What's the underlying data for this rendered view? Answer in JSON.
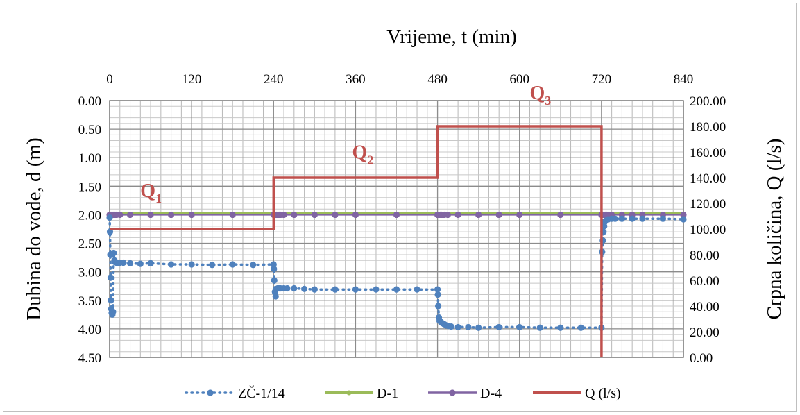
{
  "chart_data": {
    "type": "line",
    "title": "",
    "x_axis": {
      "label": "Vrijeme, t (min)",
      "position": "top",
      "range": [
        0,
        840
      ],
      "ticks": [
        0,
        120,
        240,
        360,
        480,
        600,
        720,
        840
      ],
      "tick_labels": [
        "0",
        "120",
        "240",
        "360",
        "480",
        "600",
        "720",
        "840"
      ],
      "minor_step": 15
    },
    "y_left": {
      "label": "Dubina do vode, d (m)",
      "reversed": true,
      "range": [
        0,
        4.5
      ],
      "ticks": [
        0,
        0.5,
        1.0,
        1.5,
        2.0,
        2.5,
        3.0,
        3.5,
        4.0,
        4.5
      ],
      "tick_labels": [
        "0.00",
        "0.50",
        "1.00",
        "1.50",
        "2.00",
        "2.50",
        "3.00",
        "3.50",
        "4.00",
        "4.50"
      ],
      "minor_step": 0.1
    },
    "y_right": {
      "label": "Crpna količina, Q (l/s)",
      "range": [
        0,
        200
      ],
      "ticks": [
        0,
        20,
        40,
        60,
        80,
        100,
        120,
        140,
        160,
        180,
        200
      ],
      "tick_labels": [
        "0.00",
        "20.00",
        "40.00",
        "60.00",
        "80.00",
        "100.00",
        "120.00",
        "140.00",
        "160.00",
        "180.00",
        "200.00"
      ]
    },
    "grid": true,
    "legend_position": "bottom",
    "series": [
      {
        "name": "ZČ-1/14",
        "axis": "left",
        "color": "#4f81bd",
        "style": "dotted-markers",
        "points": [
          [
            0,
            2.05
          ],
          [
            0.5,
            2.3
          ],
          [
            1,
            2.7
          ],
          [
            1.5,
            3.1
          ],
          [
            2,
            3.5
          ],
          [
            2.5,
            3.65
          ],
          [
            3,
            3.72
          ],
          [
            4,
            3.75
          ],
          [
            5,
            3.7
          ],
          [
            6,
            2.67
          ],
          [
            7,
            2.8
          ],
          [
            8,
            2.83
          ],
          [
            10,
            2.84
          ],
          [
            12,
            2.84
          ],
          [
            15,
            2.84
          ],
          [
            20,
            2.84
          ],
          [
            30,
            2.85
          ],
          [
            45,
            2.86
          ],
          [
            60,
            2.85
          ],
          [
            90,
            2.87
          ],
          [
            120,
            2.87
          ],
          [
            150,
            2.88
          ],
          [
            180,
            2.87
          ],
          [
            210,
            2.88
          ],
          [
            240,
            2.87
          ],
          [
            240.5,
            2.95
          ],
          [
            241,
            3.15
          ],
          [
            242,
            3.35
          ],
          [
            243,
            3.43
          ],
          [
            244,
            3.3
          ],
          [
            246,
            3.29
          ],
          [
            248,
            3.29
          ],
          [
            250,
            3.29
          ],
          [
            255,
            3.29
          ],
          [
            260,
            3.29
          ],
          [
            270,
            3.29
          ],
          [
            285,
            3.3
          ],
          [
            300,
            3.31
          ],
          [
            330,
            3.31
          ],
          [
            360,
            3.31
          ],
          [
            390,
            3.31
          ],
          [
            420,
            3.31
          ],
          [
            450,
            3.31
          ],
          [
            480,
            3.31
          ],
          [
            480.5,
            3.4
          ],
          [
            481,
            3.6
          ],
          [
            482,
            3.8
          ],
          [
            483,
            3.86
          ],
          [
            485,
            3.88
          ],
          [
            487,
            3.9
          ],
          [
            490,
            3.92
          ],
          [
            493,
            3.94
          ],
          [
            496,
            3.95
          ],
          [
            500,
            3.96
          ],
          [
            510,
            3.97
          ],
          [
            525,
            3.97
          ],
          [
            540,
            3.98
          ],
          [
            570,
            3.97
          ],
          [
            600,
            3.97
          ],
          [
            630,
            3.98
          ],
          [
            660,
            3.98
          ],
          [
            690,
            3.98
          ],
          [
            720,
            3.98
          ],
          [
            721,
            2.65
          ],
          [
            722,
            2.45
          ],
          [
            723,
            2.3
          ],
          [
            724,
            2.2
          ],
          [
            725,
            2.12
          ],
          [
            727,
            2.1
          ],
          [
            730,
            2.08
          ],
          [
            735,
            2.07
          ],
          [
            740,
            2.07
          ],
          [
            750,
            2.07
          ],
          [
            765,
            2.07
          ],
          [
            780,
            2.07
          ],
          [
            810,
            2.07
          ],
          [
            840,
            2.08
          ]
        ]
      },
      {
        "name": "D-1",
        "axis": "left",
        "color": "#9bbb59",
        "style": "line",
        "points": [
          [
            0,
            1.98
          ],
          [
            840,
            1.98
          ]
        ]
      },
      {
        "name": "D-4",
        "axis": "left",
        "color": "#8064a2",
        "style": "line-markers",
        "points": [
          [
            0,
            2.0
          ],
          [
            2,
            2.0
          ],
          [
            4,
            2.0
          ],
          [
            6,
            2.0
          ],
          [
            8,
            2.0
          ],
          [
            10,
            2.0
          ],
          [
            15,
            2.0
          ],
          [
            30,
            2.0
          ],
          [
            60,
            2.0
          ],
          [
            90,
            2.0
          ],
          [
            120,
            2.0
          ],
          [
            180,
            2.0
          ],
          [
            240,
            2.0
          ],
          [
            242,
            2.0
          ],
          [
            244,
            2.0
          ],
          [
            246,
            2.0
          ],
          [
            248,
            2.0
          ],
          [
            250,
            2.0
          ],
          [
            255,
            2.0
          ],
          [
            270,
            2.0
          ],
          [
            300,
            2.0
          ],
          [
            330,
            2.0
          ],
          [
            360,
            2.0
          ],
          [
            420,
            2.0
          ],
          [
            480,
            2.0
          ],
          [
            482,
            2.0
          ],
          [
            484,
            2.0
          ],
          [
            486,
            2.0
          ],
          [
            488,
            2.0
          ],
          [
            490,
            2.0
          ],
          [
            495,
            2.0
          ],
          [
            510,
            2.0
          ],
          [
            540,
            2.0
          ],
          [
            570,
            2.0
          ],
          [
            600,
            2.0
          ],
          [
            660,
            2.0
          ],
          [
            720,
            2.0
          ],
          [
            722,
            2.0
          ],
          [
            724,
            2.0
          ],
          [
            726,
            2.0
          ],
          [
            728,
            2.0
          ],
          [
            730,
            2.0
          ],
          [
            735,
            2.0
          ],
          [
            750,
            2.0
          ],
          [
            765,
            2.0
          ],
          [
            780,
            2.0
          ],
          [
            810,
            2.0
          ],
          [
            840,
            2.0
          ]
        ]
      },
      {
        "name": "Q (l/s)",
        "axis": "right",
        "color": "#c0504d",
        "style": "step-line",
        "points": [
          [
            0,
            100
          ],
          [
            240,
            100
          ],
          [
            240,
            140
          ],
          [
            480,
            140
          ],
          [
            480,
            180
          ],
          [
            720,
            180
          ],
          [
            720,
            0
          ]
        ]
      }
    ],
    "annotations": [
      {
        "text": "Q",
        "subscript": "1",
        "x": 45,
        "q": 125
      },
      {
        "text": "Q",
        "subscript": "2",
        "x": 355,
        "q": 155
      },
      {
        "text": "Q",
        "subscript": "3",
        "x": 615,
        "q": 201
      }
    ]
  }
}
